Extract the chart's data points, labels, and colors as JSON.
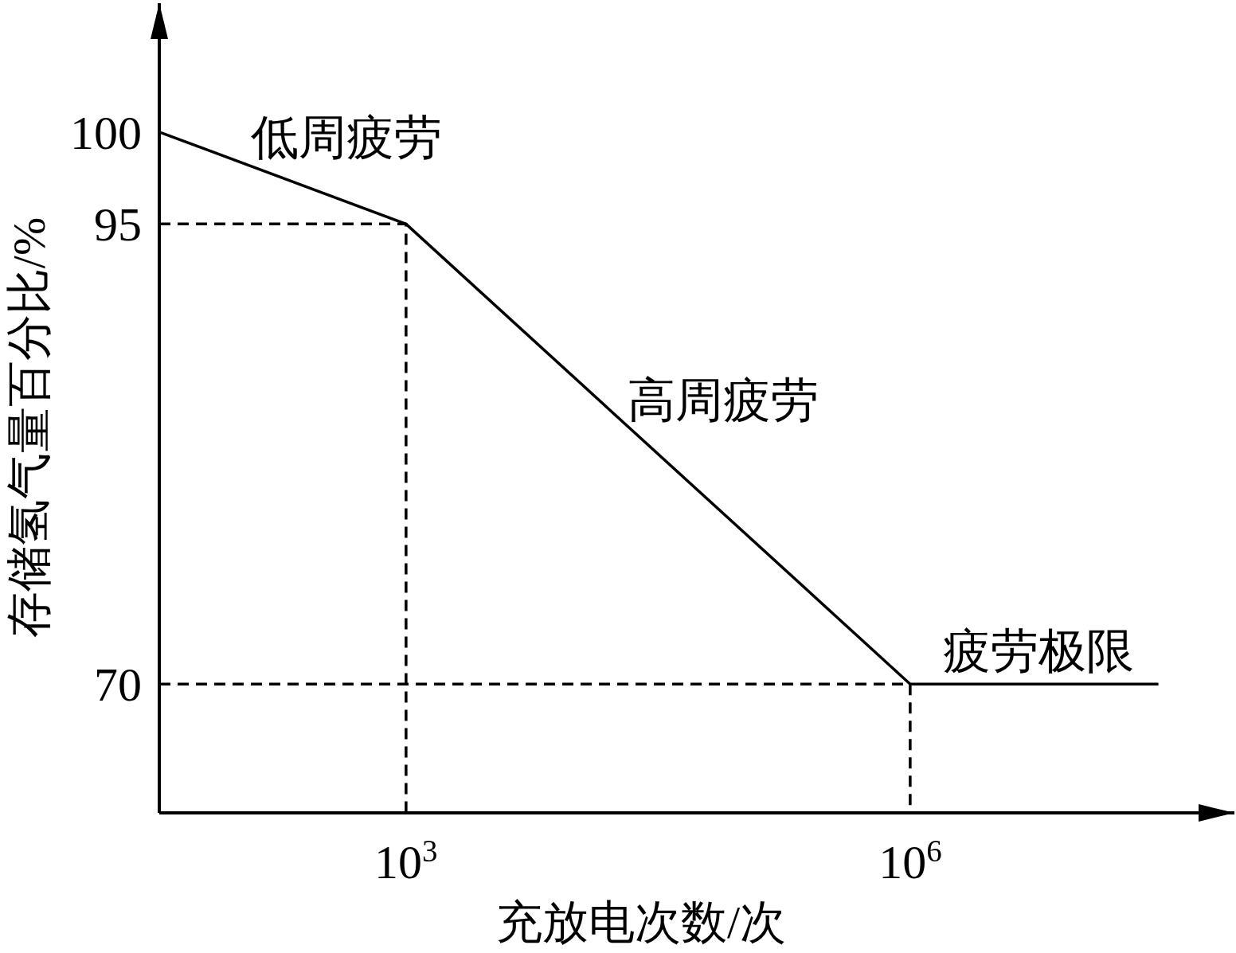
{
  "chart_data": {
    "type": "line",
    "xlabel": "充放电次数/次",
    "ylabel": "存储氢气量百分比/%",
    "log": "x",
    "xlim": [
      34,
      85000000
    ],
    "xticks": [
      {
        "value": 1000,
        "label": "10$^{3}$"
      },
      {
        "value": 1000000,
        "label": "10$^{6}$"
      }
    ],
    "ylim": [
      63,
      107
    ],
    "yticks": [
      70,
      95,
      100
    ],
    "series": [
      {
        "color": "#000000",
        "line_style": "solid",
        "x": [
          34,
          1000,
          1000000,
          30000000
        ],
        "values": [
          100,
          95,
          70,
          70
        ]
      },
      {
        "color": "#000000",
        "line_style": "dashed",
        "x": [
          34,
          1000,
          1000
        ],
        "values": [
          95,
          95,
          63
        ]
      },
      {
        "color": "#000000",
        "line_style": "dashed",
        "x": [
          34,
          1000000,
          1000000
        ],
        "values": [
          70,
          70,
          63
        ]
      }
    ],
    "annotations": [
      "低周疲劳",
      "高周疲劳",
      "疲劳极限"
    ]
  }
}
